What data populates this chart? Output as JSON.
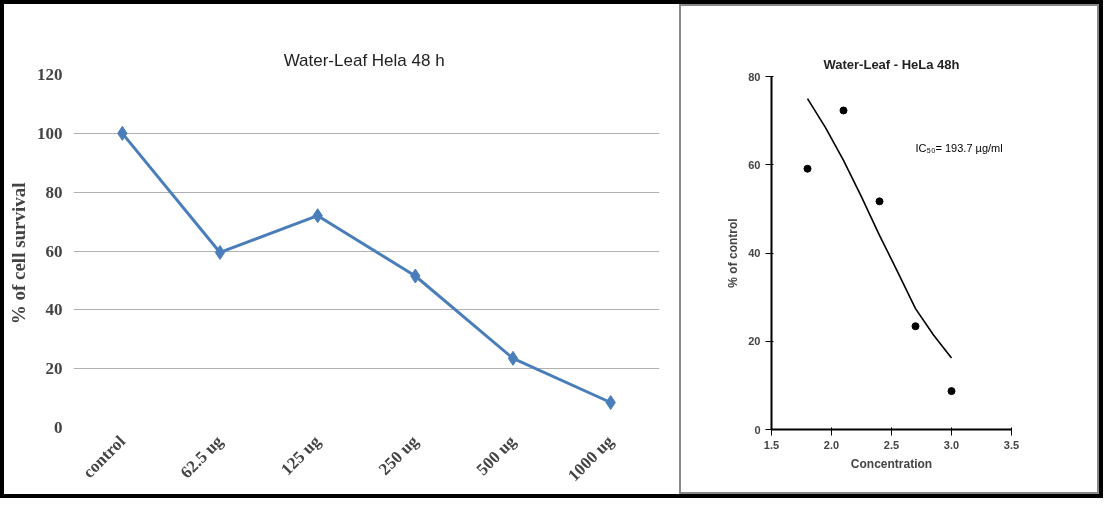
{
  "chart_data": [
    {
      "type": "line",
      "title": "Water-Leaf  Hela 48 h",
      "ylabel": "% of  cell survival",
      "categories": [
        "control",
        "62.5 ug",
        "125 ug",
        "250 ug",
        "500 ug",
        "1000 ug"
      ],
      "series": [
        {
          "color": "#4a7ebb",
          "values": [
            100,
            59.5,
            72,
            51.5,
            23.5,
            8.5
          ]
        }
      ],
      "ylim": [
        0,
        120
      ],
      "yticks": [
        0,
        20,
        40,
        60,
        80,
        100,
        120
      ],
      "grid": "y",
      "marker": "diamond",
      "line_style": "solid"
    },
    {
      "type": "scatter",
      "title": "Water-Leaf - HeLa 48h",
      "xlabel": "Concentration",
      "ylabel": "% of control",
      "annotations": [
        "IC₅₀= 193.7 µg/ml"
      ],
      "series": [
        {
          "type": "scatter",
          "marker": "circle",
          "color": "#000000",
          "x": [
            1.8,
            2.1,
            2.4,
            2.7,
            3.0
          ],
          "values": [
            59.1,
            72.3,
            51.7,
            23.4,
            8.7
          ]
        },
        {
          "type": "line",
          "marker": "none",
          "color": "#000000",
          "x": [
            1.8,
            1.95,
            2.1,
            2.25,
            2.4,
            2.55,
            2.7,
            2.85,
            3.0
          ],
          "values": [
            75,
            68.4,
            61,
            52.7,
            44,
            35.8,
            27.4,
            21.4,
            16.2
          ]
        }
      ],
      "xlim": [
        1.5,
        3.5
      ],
      "xticks": [
        1.5,
        {
          "value": 2,
          "label": "2.0"
        },
        2.5,
        {
          "value": 3,
          "label": "3.0"
        },
        3.5
      ],
      "ylim": [
        0,
        80
      ],
      "yticks": [
        0,
        20,
        40,
        60,
        80
      ],
      "grid": false
    }
  ]
}
